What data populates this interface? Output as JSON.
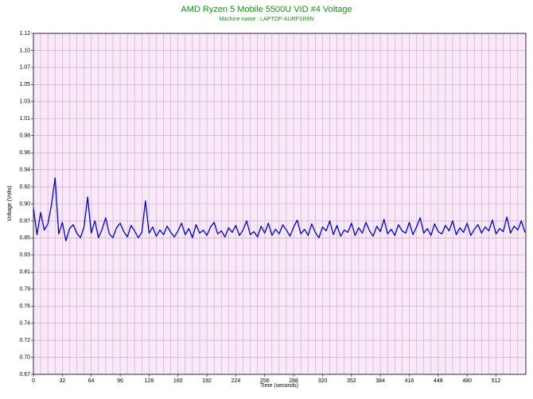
{
  "chart_data": {
    "type": "line",
    "title": "AMD Ryzen 5 Mobile 5500U VID #4 Voltage",
    "subtitle": "Machine name : LAPTOP-AURFSR8N",
    "x_label": "Time (seconds)",
    "y_label": "Voltage (Volts)",
    "xlim": [
      0,
      545
    ],
    "ylim": [
      0.6741,
      1.1181
    ],
    "xticks": [
      0,
      32,
      64,
      96,
      128,
      160,
      192,
      224,
      256,
      288,
      320,
      352,
      384,
      416,
      448,
      480,
      512
    ],
    "yticks": [
      {
        "value": 0.6741,
        "label": "0.67"
      },
      {
        "value": 0.6963,
        "label": "0.70"
      },
      {
        "value": 0.7185,
        "label": "0.72"
      },
      {
        "value": 0.7407,
        "label": "0.74"
      },
      {
        "value": 0.7629,
        "label": "0.76"
      },
      {
        "value": 0.7851,
        "label": "0.79"
      },
      {
        "value": 0.8073,
        "label": "0.81"
      },
      {
        "value": 0.8295,
        "label": "0.83"
      },
      {
        "value": 0.8517,
        "label": "0.85"
      },
      {
        "value": 0.8739,
        "label": "0.87"
      },
      {
        "value": 0.8961,
        "label": "0.90"
      },
      {
        "value": 0.9183,
        "label": "0.92"
      },
      {
        "value": 0.9405,
        "label": "0.94"
      },
      {
        "value": 0.9627,
        "label": "0.96"
      },
      {
        "value": 0.9849,
        "label": "0.98"
      },
      {
        "value": 1.0071,
        "label": "1.01"
      },
      {
        "value": 1.0293,
        "label": "1.03"
      },
      {
        "value": 1.0515,
        "label": "1.05"
      },
      {
        "value": 1.0737,
        "label": "1.07"
      },
      {
        "value": 1.0959,
        "label": "1.10"
      },
      {
        "value": 1.1181,
        "label": "1.12"
      }
    ],
    "grid": true,
    "series": [
      {
        "name": "VID #4 Voltage",
        "color": "#0000cc",
        "x": [
          0,
          4,
          8,
          12,
          16,
          20,
          24,
          28,
          32,
          36,
          40,
          44,
          48,
          52,
          56,
          60,
          64,
          68,
          72,
          76,
          80,
          84,
          88,
          92,
          96,
          100,
          104,
          108,
          112,
          116,
          120,
          124,
          128,
          132,
          136,
          140,
          144,
          148,
          152,
          156,
          160,
          164,
          168,
          172,
          176,
          180,
          184,
          188,
          192,
          196,
          200,
          204,
          208,
          212,
          216,
          220,
          224,
          228,
          232,
          236,
          240,
          244,
          248,
          252,
          256,
          260,
          264,
          268,
          272,
          276,
          280,
          284,
          288,
          292,
          296,
          300,
          304,
          308,
          312,
          316,
          320,
          324,
          328,
          332,
          336,
          340,
          344,
          348,
          352,
          356,
          360,
          364,
          368,
          372,
          376,
          380,
          384,
          388,
          392,
          396,
          400,
          404,
          408,
          412,
          416,
          420,
          424,
          428,
          432,
          436,
          440,
          444,
          448,
          452,
          456,
          460,
          464,
          468,
          472,
          476,
          480,
          484,
          488,
          492,
          496,
          500,
          504,
          508,
          512,
          516,
          520,
          524,
          528,
          532,
          536,
          540,
          544
        ],
        "values": [
          0.89,
          0.856,
          0.885,
          0.862,
          0.87,
          0.895,
          0.93,
          0.857,
          0.872,
          0.848,
          0.864,
          0.869,
          0.858,
          0.852,
          0.866,
          0.905,
          0.858,
          0.874,
          0.852,
          0.863,
          0.878,
          0.857,
          0.852,
          0.865,
          0.871,
          0.86,
          0.853,
          0.868,
          0.861,
          0.852,
          0.859,
          0.9,
          0.858,
          0.866,
          0.854,
          0.862,
          0.856,
          0.867,
          0.859,
          0.853,
          0.861,
          0.871,
          0.856,
          0.864,
          0.852,
          0.869,
          0.858,
          0.862,
          0.855,
          0.866,
          0.872,
          0.857,
          0.861,
          0.853,
          0.865,
          0.859,
          0.868,
          0.855,
          0.862,
          0.874,
          0.856,
          0.86,
          0.853,
          0.867,
          0.858,
          0.871,
          0.855,
          0.863,
          0.857,
          0.869,
          0.862,
          0.854,
          0.866,
          0.875,
          0.857,
          0.863,
          0.855,
          0.87,
          0.859,
          0.852,
          0.866,
          0.861,
          0.874,
          0.856,
          0.868,
          0.854,
          0.862,
          0.859,
          0.871,
          0.855,
          0.865,
          0.858,
          0.872,
          0.861,
          0.854,
          0.867,
          0.86,
          0.876,
          0.857,
          0.863,
          0.855,
          0.869,
          0.861,
          0.858,
          0.872,
          0.856,
          0.866,
          0.878,
          0.858,
          0.864,
          0.855,
          0.87,
          0.86,
          0.857,
          0.868,
          0.861,
          0.874,
          0.856,
          0.865,
          0.859,
          0.871,
          0.855,
          0.863,
          0.869,
          0.858,
          0.866,
          0.861,
          0.875,
          0.857,
          0.864,
          0.86,
          0.879,
          0.858,
          0.867,
          0.862,
          0.874,
          0.859
        ]
      }
    ]
  }
}
